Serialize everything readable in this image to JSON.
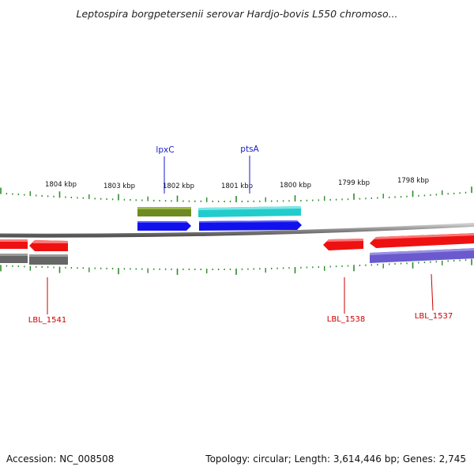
{
  "title": "Leptospira borgpetersenii serovar Hardjo-bovis L550 chromoso...",
  "footer": {
    "accession_label": "Accession:",
    "accession": "NC_008508",
    "topology_label": "Topology:",
    "topology": "circular",
    "length_label": "Length:",
    "length": "3,614,446 bp",
    "genes_label": "Genes:",
    "genes": "2,745"
  },
  "scale_labels": [
    "1804 kbp",
    "1803 kbp",
    "1802 kbp",
    "1801 kbp",
    "1800 kbp",
    "1799 kbp",
    "1798 kbp"
  ],
  "gene_labels_top": [
    "lpxC",
    "ptsA"
  ],
  "gene_labels_bottom": [
    "LBL_1541",
    "LBL_1538",
    "LBL_1537"
  ],
  "colors": {
    "tick": "#2e8b2e",
    "backbone": "#888888",
    "label_blue": "#1a1acc",
    "label_red": "#cc0000",
    "feature_red": "#ee1111",
    "feature_blue": "#1111ee",
    "feature_olive": "#6e8b22",
    "feature_cyan": "#22cccc",
    "feature_gray": "#666666",
    "feature_purple": "#6a5acd"
  }
}
